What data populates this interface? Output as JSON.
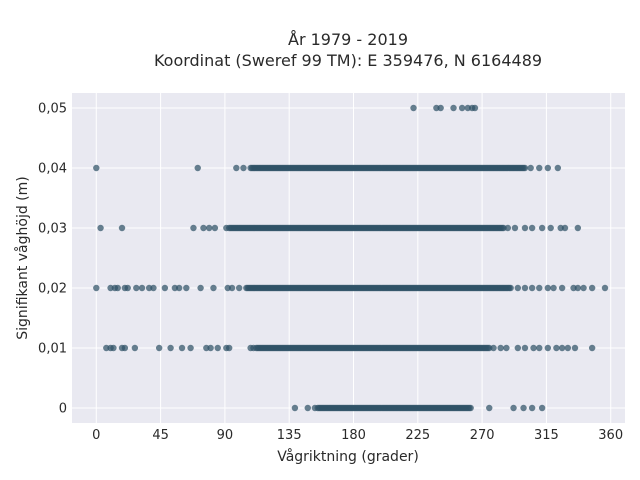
{
  "chart_data": {
    "type": "scatter",
    "title_line1": "År 1979 - 2019",
    "title_line2": "Koordinat (Sweref 99 TM): E 359476, N 6164489",
    "xlabel": "Vågriktning (grader)",
    "ylabel": "Signifikant våghöjd (m)",
    "xlim": [
      -17,
      370
    ],
    "ylim": [
      -0.0025,
      0.0525
    ],
    "xticks": [
      0,
      45,
      90,
      135,
      180,
      225,
      270,
      315,
      360
    ],
    "xtick_labels": [
      "0",
      "45",
      "90",
      "135",
      "180",
      "225",
      "270",
      "315",
      "360"
    ],
    "yticks": [
      0,
      0.01,
      0.02,
      0.03,
      0.04,
      0.05
    ],
    "ytick_labels": [
      "0",
      "0,01",
      "0,02",
      "0,03",
      "0,04",
      "0,05"
    ],
    "grid": true,
    "colors": {
      "background": "#e9e9f1",
      "marker": "#2f5266",
      "grid": "#ffffff"
    },
    "series": [
      {
        "y": 0,
        "dense": [
          [
            155,
            262
          ]
        ],
        "points": [
          139,
          148,
          153,
          275,
          292,
          299,
          305,
          312
        ]
      },
      {
        "y": 0.01,
        "dense": [
          [
            112,
            275
          ]
        ],
        "points": [
          7,
          10,
          12,
          18,
          20,
          27,
          44,
          52,
          60,
          66,
          77,
          80,
          85,
          91,
          93,
          108,
          110,
          278,
          283,
          287,
          295,
          300,
          306,
          310,
          316,
          322,
          326,
          330,
          335,
          347
        ]
      },
      {
        "y": 0.02,
        "dense": [
          [
            105,
            290
          ]
        ],
        "points": [
          0,
          10,
          13,
          15,
          20,
          22,
          28,
          32,
          37,
          40,
          48,
          55,
          58,
          63,
          73,
          82,
          92,
          95,
          100,
          295,
          300,
          305,
          310,
          316,
          320,
          326,
          334,
          337,
          341,
          347,
          356
        ]
      },
      {
        "y": 0.03,
        "dense": [
          [
            93,
            285
          ]
        ],
        "points": [
          3,
          18,
          68,
          75,
          79,
          83,
          91,
          288,
          293,
          300,
          305,
          312,
          318,
          325,
          328,
          337
        ]
      },
      {
        "y": 0.04,
        "dense": [
          [
            108,
            300
          ]
        ],
        "points": [
          0,
          71,
          98,
          103,
          304,
          310,
          316,
          323
        ]
      },
      {
        "y": 0.05,
        "dense": [],
        "points": [
          222,
          238,
          241,
          250,
          256,
          260,
          263,
          265
        ]
      }
    ]
  }
}
